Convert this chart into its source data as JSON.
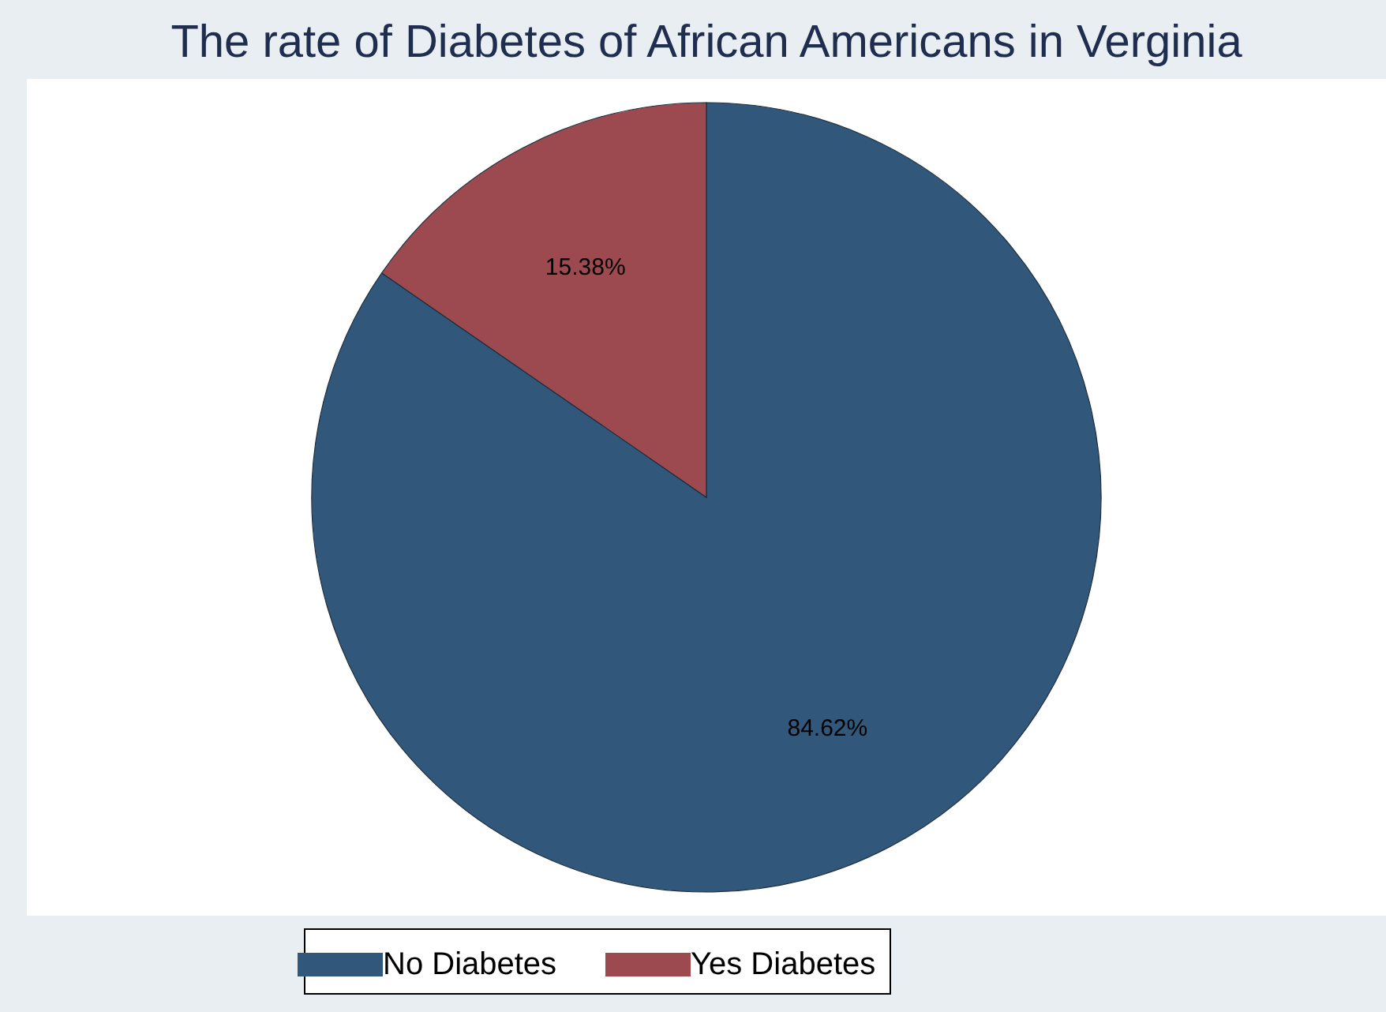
{
  "chart_data": {
    "type": "pie",
    "title": "The rate of Diabetes of African Americans in Verginia",
    "categories": [
      "No Diabetes",
      "Yes Diabetes"
    ],
    "values": [
      84.62,
      15.38
    ],
    "colors": [
      "#31587a",
      "#9c4a4f"
    ],
    "value_labels": [
      "84.62%",
      "15.38%"
    ],
    "legend": "bottom"
  }
}
